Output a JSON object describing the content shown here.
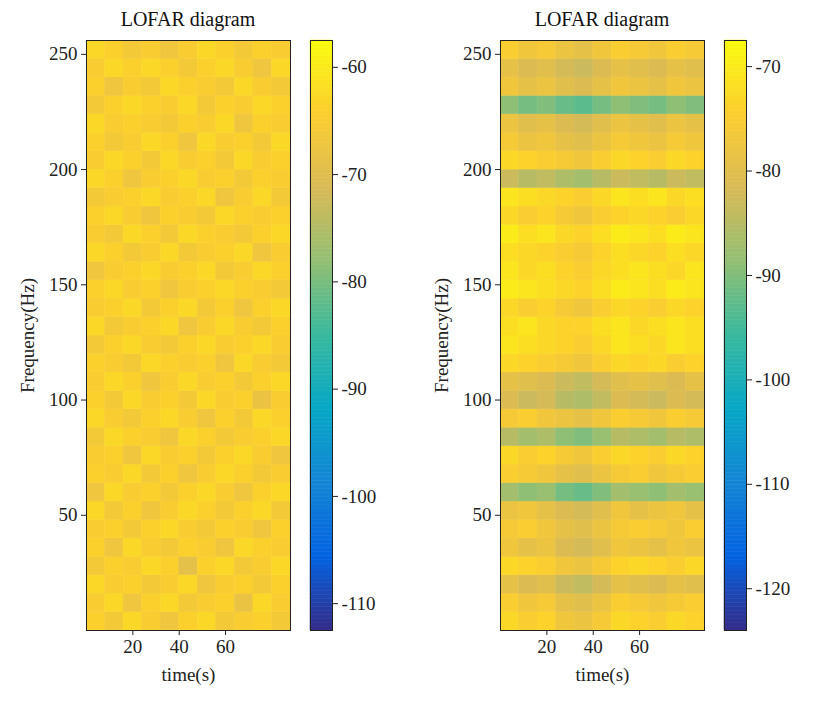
{
  "chart_data": [
    {
      "type": "heatmap",
      "title": "LOFAR diagram",
      "x_label": "time(s)",
      "y_label": "Frequency(Hz)",
      "xlim": [
        0,
        88
      ],
      "xticks": [
        20,
        40,
        60
      ],
      "ylim": [
        0,
        256
      ],
      "yticks": [
        50,
        100,
        150,
        200,
        250
      ],
      "x_edges": [
        0,
        8,
        16,
        24,
        32,
        40,
        48,
        56,
        64,
        72,
        80,
        88
      ],
      "y_edges": [
        0,
        8,
        16,
        24,
        32,
        40,
        48,
        56,
        64,
        72,
        80,
        88,
        96,
        104,
        112,
        120,
        128,
        136,
        144,
        152,
        160,
        168,
        176,
        184,
        192,
        200,
        208,
        216,
        224,
        232,
        240,
        248,
        256
      ],
      "values": [
        [
          -64,
          -66,
          -63,
          -65,
          -67,
          -64,
          -63,
          -66,
          -65,
          -64,
          -66
        ],
        [
          -65,
          -63,
          -67,
          -64,
          -63,
          -66,
          -65,
          -64,
          -68,
          -63,
          -65
        ],
        [
          -63,
          -65,
          -64,
          -66,
          -65,
          -63,
          -67,
          -65,
          -64,
          -66,
          -64
        ],
        [
          -66,
          -64,
          -65,
          -63,
          -64,
          -69,
          -64,
          -63,
          -66,
          -65,
          -63
        ],
        [
          -64,
          -67,
          -63,
          -65,
          -66,
          -64,
          -65,
          -67,
          -63,
          -64,
          -65
        ],
        [
          -65,
          -64,
          -66,
          -64,
          -63,
          -65,
          -66,
          -64,
          -65,
          -67,
          -64
        ],
        [
          -63,
          -66,
          -64,
          -67,
          -65,
          -63,
          -64,
          -66,
          -64,
          -63,
          -66
        ],
        [
          -67,
          -63,
          -65,
          -64,
          -66,
          -64,
          -63,
          -65,
          -67,
          -64,
          -63
        ],
        [
          -64,
          -65,
          -63,
          -66,
          -64,
          -67,
          -65,
          -63,
          -64,
          -66,
          -65
        ],
        [
          -65,
          -64,
          -67,
          -63,
          -65,
          -64,
          -66,
          -64,
          -63,
          -65,
          -67
        ],
        [
          -66,
          -63,
          -64,
          -65,
          -67,
          -63,
          -64,
          -66,
          -65,
          -64,
          -63
        ],
        [
          -63,
          -65,
          -66,
          -64,
          -63,
          -65,
          -67,
          -64,
          -66,
          -63,
          -64
        ],
        [
          -64,
          -66,
          -63,
          -65,
          -64,
          -66,
          -63,
          -65,
          -64,
          -68,
          -65
        ],
        [
          -65,
          -63,
          -64,
          -67,
          -65,
          -63,
          -65,
          -64,
          -66,
          -64,
          -63
        ],
        [
          -64,
          -65,
          -66,
          -63,
          -64,
          -65,
          -64,
          -67,
          -63,
          -65,
          -66
        ],
        [
          -66,
          -64,
          -63,
          -65,
          -66,
          -64,
          -63,
          -65,
          -64,
          -63,
          -65
        ],
        [
          -63,
          -66,
          -65,
          -64,
          -63,
          -67,
          -65,
          -63,
          -65,
          -66,
          -64
        ],
        [
          -65,
          -64,
          -63,
          -66,
          -64,
          -63,
          -66,
          -64,
          -67,
          -64,
          -63
        ],
        [
          -64,
          -63,
          -65,
          -64,
          -67,
          -65,
          -64,
          -63,
          -64,
          -65,
          -66
        ],
        [
          -67,
          -65,
          -64,
          -63,
          -65,
          -64,
          -63,
          -66,
          -65,
          -63,
          -64
        ],
        [
          -63,
          -64,
          -66,
          -65,
          -63,
          -66,
          -65,
          -64,
          -63,
          -67,
          -65
        ],
        [
          -65,
          -66,
          -63,
          -64,
          -66,
          -63,
          -64,
          -65,
          -66,
          -64,
          -63
        ],
        [
          -64,
          -63,
          -65,
          -67,
          -64,
          -65,
          -66,
          -63,
          -64,
          -65,
          -64
        ],
        [
          -66,
          -65,
          -64,
          -63,
          -65,
          -64,
          -63,
          -67,
          -65,
          -63,
          -66
        ],
        [
          -63,
          -64,
          -67,
          -65,
          -64,
          -63,
          -65,
          -64,
          -66,
          -64,
          -65
        ],
        [
          -65,
          -63,
          -64,
          -66,
          -63,
          -65,
          -64,
          -66,
          -63,
          -65,
          -64
        ],
        [
          -64,
          -66,
          -65,
          -63,
          -64,
          -67,
          -63,
          -65,
          -64,
          -66,
          -63
        ],
        [
          -63,
          -65,
          -64,
          -65,
          -66,
          -64,
          -65,
          -63,
          -67,
          -64,
          -65
        ],
        [
          -66,
          -64,
          -63,
          -64,
          -65,
          -63,
          -66,
          -64,
          -65,
          -63,
          -64
        ],
        [
          -64,
          -67,
          -65,
          -66,
          -63,
          -64,
          -65,
          -66,
          -63,
          -65,
          -66
        ],
        [
          -65,
          -63,
          -64,
          -63,
          -64,
          -66,
          -64,
          -63,
          -65,
          -67,
          -63
        ],
        [
          -63,
          -64,
          -66,
          -65,
          -67,
          -65,
          -63,
          -64,
          -66,
          -64,
          -65
        ]
      ],
      "colorbar": {
        "range": [
          -112.5,
          -57.5
        ],
        "ticks": [
          -110,
          -100,
          -90,
          -80,
          -70,
          -60
        ]
      }
    },
    {
      "type": "heatmap",
      "title": "LOFAR diagram",
      "x_label": "time(s)",
      "y_label": "Frequency(Hz)",
      "xlim": [
        0,
        88
      ],
      "xticks": [
        20,
        40,
        60
      ],
      "ylim": [
        0,
        256
      ],
      "yticks": [
        50,
        100,
        150,
        200,
        250
      ],
      "x_edges": [
        0,
        8,
        16,
        24,
        32,
        40,
        48,
        56,
        64,
        72,
        80,
        88
      ],
      "y_edges": [
        0,
        8,
        16,
        24,
        32,
        40,
        48,
        56,
        64,
        72,
        80,
        88,
        96,
        104,
        112,
        120,
        128,
        136,
        144,
        152,
        160,
        168,
        176,
        184,
        192,
        200,
        208,
        216,
        224,
        232,
        240,
        248,
        256
      ],
      "values": [
        [
          -73,
          -75,
          -74,
          -77,
          -78,
          -76,
          -73,
          -74,
          -75,
          -73,
          -74
        ],
        [
          -75,
          -77,
          -76,
          -79,
          -80,
          -78,
          -75,
          -76,
          -77,
          -76,
          -75
        ],
        [
          -79,
          -81,
          -80,
          -83,
          -84,
          -82,
          -79,
          -80,
          -81,
          -79,
          -80
        ],
        [
          -73,
          -74,
          -75,
          -77,
          -78,
          -76,
          -74,
          -73,
          -74,
          -75,
          -73
        ],
        [
          -77,
          -79,
          -78,
          -81,
          -82,
          -80,
          -77,
          -78,
          -79,
          -77,
          -78
        ],
        [
          -76,
          -75,
          -77,
          -79,
          -80,
          -78,
          -76,
          -75,
          -76,
          -77,
          -75
        ],
        [
          -78,
          -77,
          -79,
          -81,
          -82,
          -80,
          -77,
          -79,
          -78,
          -77,
          -79
        ],
        [
          -87,
          -89,
          -88,
          -91,
          -92,
          -90,
          -87,
          -88,
          -89,
          -87,
          -88
        ],
        [
          -75,
          -76,
          -77,
          -79,
          -80,
          -78,
          -76,
          -75,
          -77,
          -76,
          -75
        ],
        [
          -73,
          -75,
          -74,
          -76,
          -77,
          -75,
          -73,
          -74,
          -75,
          -73,
          -74
        ],
        [
          -85,
          -87,
          -86,
          -89,
          -90,
          -88,
          -85,
          -86,
          -87,
          -85,
          -86
        ],
        [
          -76,
          -75,
          -77,
          -78,
          -79,
          -77,
          -75,
          -76,
          -77,
          -75,
          -76
        ],
        [
          -81,
          -83,
          -82,
          -85,
          -86,
          -84,
          -81,
          -82,
          -83,
          -81,
          -82
        ],
        [
          -79,
          -80,
          -81,
          -83,
          -84,
          -82,
          -80,
          -79,
          -80,
          -81,
          -79
        ],
        [
          -73,
          -74,
          -75,
          -76,
          -77,
          -75,
          -73,
          -74,
          -73,
          -75,
          -74
        ],
        [
          -71,
          -72,
          -73,
          -74,
          -75,
          -73,
          -71,
          -72,
          -73,
          -71,
          -72
        ],
        [
          -72,
          -71,
          -73,
          -74,
          -74,
          -72,
          -71,
          -73,
          -72,
          -71,
          -72
        ],
        [
          -73,
          -75,
          -74,
          -76,
          -77,
          -75,
          -73,
          -74,
          -75,
          -73,
          -74
        ],
        [
          -70,
          -71,
          -72,
          -73,
          -74,
          -72,
          -70,
          -71,
          -72,
          -70,
          -71
        ],
        [
          -71,
          -73,
          -72,
          -74,
          -75,
          -73,
          -72,
          -71,
          -72,
          -73,
          -71
        ],
        [
          -72,
          -73,
          -74,
          -75,
          -76,
          -74,
          -72,
          -73,
          -74,
          -72,
          -73
        ],
        [
          -70,
          -72,
          -71,
          -73,
          -74,
          -72,
          -70,
          -71,
          -72,
          -70,
          -71
        ],
        [
          -73,
          -75,
          -74,
          -76,
          -77,
          -75,
          -74,
          -73,
          -74,
          -75,
          -73
        ],
        [
          -71,
          -72,
          -73,
          -74,
          -75,
          -73,
          -71,
          -72,
          -71,
          -73,
          -72
        ],
        [
          -83,
          -85,
          -84,
          -86,
          -87,
          -85,
          -83,
          -84,
          -85,
          -83,
          -84
        ],
        [
          -73,
          -74,
          -75,
          -76,
          -77,
          -75,
          -73,
          -74,
          -75,
          -73,
          -74
        ],
        [
          -76,
          -78,
          -77,
          -79,
          -80,
          -78,
          -76,
          -77,
          -78,
          -76,
          -77
        ],
        [
          -78,
          -80,
          -79,
          -81,
          -82,
          -80,
          -78,
          -79,
          -80,
          -78,
          -79
        ],
        [
          -89,
          -91,
          -90,
          -92,
          -93,
          -91,
          -89,
          -90,
          -91,
          -89,
          -90
        ],
        [
          -77,
          -79,
          -78,
          -80,
          -81,
          -79,
          -77,
          -78,
          -79,
          -77,
          -78
        ],
        [
          -79,
          -81,
          -80,
          -82,
          -83,
          -81,
          -79,
          -80,
          -81,
          -79,
          -80
        ],
        [
          -75,
          -77,
          -76,
          -78,
          -79,
          -77,
          -75,
          -76,
          -77,
          -75,
          -76
        ]
      ],
      "colorbar": {
        "range": [
          -124,
          -67.5
        ],
        "ticks": [
          -120,
          -110,
          -100,
          -90,
          -80,
          -70
        ]
      }
    }
  ]
}
